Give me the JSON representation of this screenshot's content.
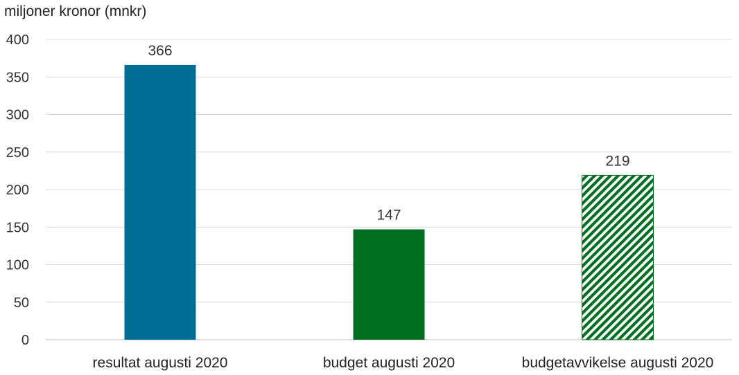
{
  "chart_data": {
    "type": "bar",
    "title": "",
    "ylabel": "miljoner kronor (mnkr)",
    "xlabel": "",
    "categories": [
      "resultat augusti 2020",
      "budget augusti 2020",
      "budgetavvikelse augusti 2020"
    ],
    "values": [
      366,
      147,
      219
    ],
    "data_labels": [
      "366",
      "147",
      "219"
    ],
    "ylim": [
      0,
      400
    ],
    "yticks": [
      0,
      50,
      100,
      150,
      200,
      250,
      300,
      350,
      400
    ],
    "grid": true,
    "legend": "none",
    "bar_styles": [
      {
        "fill": "solid",
        "color": "#006d97"
      },
      {
        "fill": "solid",
        "color": "#006f22"
      },
      {
        "fill": "diagonal-hatch",
        "color": "#006f22"
      }
    ],
    "colors": {
      "gridline": "#d9d9d9",
      "axis": "#bfbfbf"
    }
  }
}
